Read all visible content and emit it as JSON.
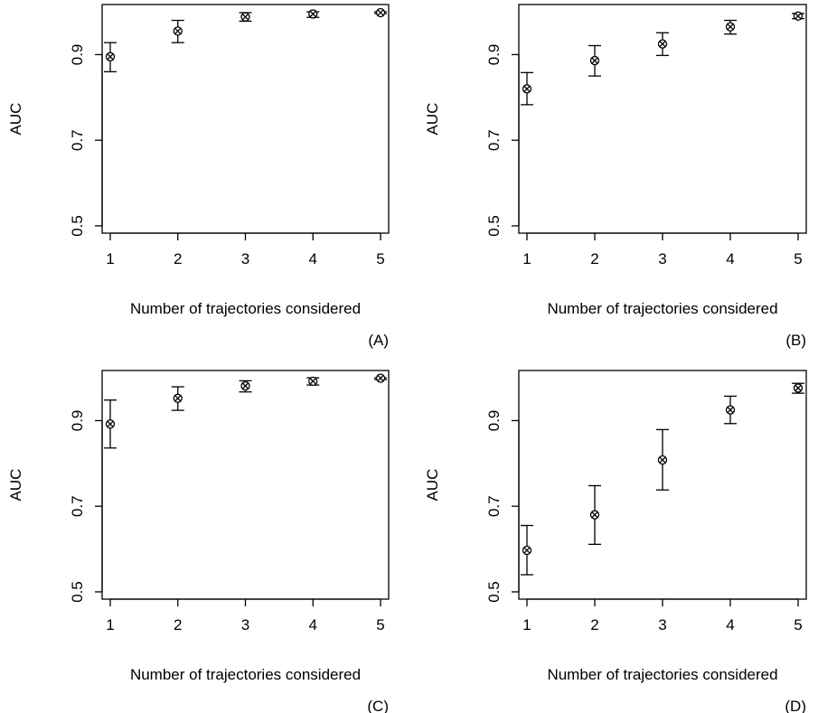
{
  "colors": {
    "ink": "#000000",
    "background": "#ffffff"
  },
  "marker": "circle-with-x",
  "chart_data": [
    {
      "type": "scatter",
      "panel_label": "(A)",
      "xlabel": "Number of trajectories considered",
      "ylabel": "AUC",
      "x": [
        1,
        2,
        3,
        4,
        5
      ],
      "y": [
        0.895,
        0.955,
        0.988,
        0.995,
        0.998
      ],
      "error_low": [
        0.86,
        0.928,
        0.978,
        0.987,
        0.996
      ],
      "error_high": [
        0.928,
        0.98,
        0.998,
        1.0,
        1.0
      ],
      "xticks": [
        "1",
        "2",
        "3",
        "4",
        "5"
      ],
      "yticks": [
        "0.5",
        "0.7",
        "0.9"
      ],
      "xlim": [
        0.88,
        5.12
      ],
      "ylim": [
        0.483,
        1.017
      ],
      "grid": false
    },
    {
      "type": "scatter",
      "panel_label": "(B)",
      "xlabel": "Number of trajectories considered",
      "ylabel": "AUC",
      "x": [
        1,
        2,
        3,
        4,
        5
      ],
      "y": [
        0.82,
        0.886,
        0.925,
        0.965,
        0.99
      ],
      "error_low": [
        0.783,
        0.85,
        0.898,
        0.948,
        0.984
      ],
      "error_high": [
        0.858,
        0.921,
        0.951,
        0.98,
        0.996
      ],
      "xticks": [
        "1",
        "2",
        "3",
        "4",
        "5"
      ],
      "yticks": [
        "0.5",
        "0.7",
        "0.9"
      ],
      "xlim": [
        0.88,
        5.12
      ],
      "ylim": [
        0.483,
        1.017
      ],
      "grid": false
    },
    {
      "type": "scatter",
      "panel_label": "(C)",
      "xlabel": "Number of trajectories considered",
      "ylabel": "AUC",
      "x": [
        1,
        2,
        3,
        4,
        5
      ],
      "y": [
        0.892,
        0.952,
        0.981,
        0.992,
        0.999
      ],
      "error_low": [
        0.836,
        0.924,
        0.967,
        0.983,
        0.996
      ],
      "error_high": [
        0.948,
        0.979,
        0.993,
        1.0,
        1.0
      ],
      "xticks": [
        "1",
        "2",
        "3",
        "4",
        "5"
      ],
      "yticks": [
        "0.5",
        "0.7",
        "0.9"
      ],
      "xlim": [
        0.88,
        5.12
      ],
      "ylim": [
        0.483,
        1.017
      ],
      "grid": false
    },
    {
      "type": "scatter",
      "panel_label": "(D)",
      "xlabel": "Number of trajectories considered",
      "ylabel": "AUC",
      "x": [
        1,
        2,
        3,
        4,
        5
      ],
      "y": [
        0.597,
        0.68,
        0.808,
        0.925,
        0.976
      ],
      "error_low": [
        0.54,
        0.611,
        0.738,
        0.893,
        0.964
      ],
      "error_high": [
        0.655,
        0.748,
        0.879,
        0.957,
        0.987
      ],
      "xticks": [
        "1",
        "2",
        "3",
        "4",
        "5"
      ],
      "yticks": [
        "0.5",
        "0.7",
        "0.9"
      ],
      "xlim": [
        0.88,
        5.12
      ],
      "ylim": [
        0.483,
        1.017
      ],
      "grid": false
    }
  ]
}
